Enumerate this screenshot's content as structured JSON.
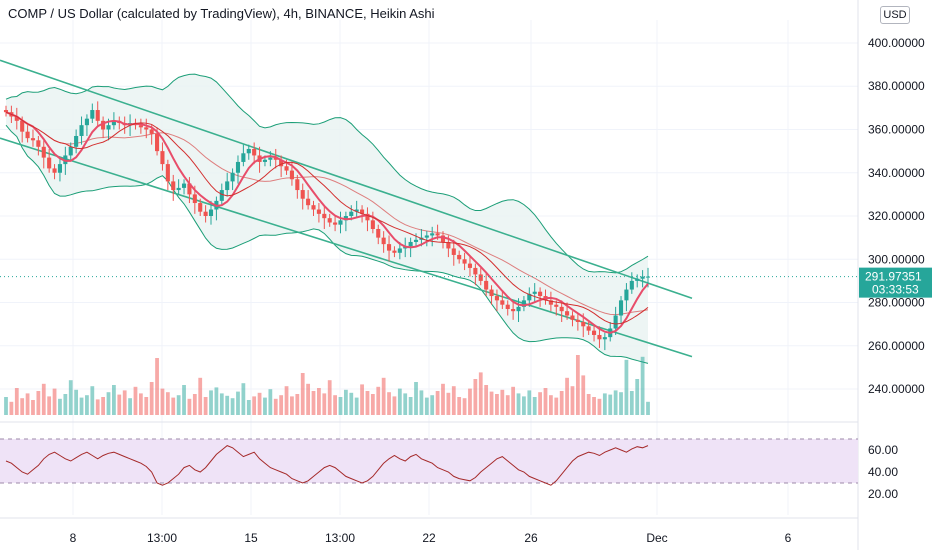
{
  "header": {
    "title": "COMP / US Dollar (calculated by TradingView), 4h, BINANCE, Heikin Ashi",
    "currency_button": "USD"
  },
  "price_axis": {
    "ticks": [
      "400.00000",
      "380.00000",
      "360.00000",
      "340.00000",
      "320.00000",
      "300.00000",
      "280.00000",
      "260.00000",
      "240.00000"
    ],
    "last_price": "291.97351",
    "countdown": "03:33:53"
  },
  "rsi_axis": {
    "ticks": [
      "60.00",
      "40.00",
      "20.00"
    ]
  },
  "time_axis": {
    "labels": [
      "8",
      "13:00",
      "15",
      "13:00",
      "22",
      "26",
      "Dec",
      "6"
    ]
  },
  "colors": {
    "up": "#26a69a",
    "down": "#ef5350",
    "ma": "#e84d6a",
    "ma_slow": "#d32f2f",
    "bb": "#1b9e77",
    "bb_fill": "#e9f3f1",
    "channel": "#3bb08f",
    "rsi_line": "#a52a2a",
    "rsi_band": "#efe3f7",
    "price_line": "#26a69a"
  },
  "chart_data": {
    "type": "candlestick",
    "symbol": "COMP / US Dollar",
    "interval": "4h",
    "exchange": "BINANCE",
    "style": "Heikin Ashi",
    "ylim": [
      228,
      406
    ],
    "last_price": 291.97351,
    "closes": [
      368,
      366,
      364,
      359,
      356,
      355,
      352,
      347,
      342,
      340,
      344,
      348,
      352,
      357,
      362,
      365,
      369,
      364,
      360,
      362,
      364,
      363,
      362,
      363,
      362,
      361,
      360,
      358,
      350,
      344,
      336,
      332,
      333,
      335,
      330,
      326,
      322,
      320,
      323,
      327,
      332,
      336,
      340,
      345,
      349,
      351,
      348,
      345,
      346,
      347,
      346,
      343,
      341,
      337,
      332,
      328,
      325,
      323,
      321,
      319,
      317,
      316,
      318,
      320,
      322,
      323,
      321,
      318,
      314,
      310,
      307,
      304,
      303,
      305,
      306,
      308,
      309,
      310,
      311,
      312,
      311,
      308,
      305,
      302,
      300,
      298,
      296,
      293,
      290,
      286,
      283,
      281,
      279,
      277,
      276,
      278,
      281,
      284,
      285,
      283,
      281,
      279,
      278,
      276,
      274,
      272,
      271,
      269,
      267,
      265,
      263,
      264,
      268,
      274,
      281,
      286,
      290,
      291,
      292,
      292
    ],
    "volume": [
      0.3,
      0.22,
      0.45,
      0.28,
      0.36,
      0.25,
      0.4,
      0.52,
      0.31,
      0.44,
      0.27,
      0.35,
      0.58,
      0.42,
      0.29,
      0.33,
      0.48,
      0.26,
      0.3,
      0.38,
      0.5,
      0.34,
      0.41,
      0.28,
      0.47,
      0.36,
      0.3,
      0.55,
      0.95,
      0.44,
      0.38,
      0.29,
      0.33,
      0.5,
      0.27,
      0.35,
      0.62,
      0.3,
      0.41,
      0.46,
      0.36,
      0.32,
      0.28,
      0.39,
      0.53,
      0.25,
      0.31,
      0.37,
      0.29,
      0.43,
      0.27,
      0.33,
      0.48,
      0.31,
      0.35,
      0.7,
      0.52,
      0.4,
      0.45,
      0.36,
      0.58,
      0.33,
      0.3,
      0.42,
      0.37,
      0.29,
      0.51,
      0.4,
      0.35,
      0.47,
      0.62,
      0.38,
      0.31,
      0.44,
      0.36,
      0.3,
      0.55,
      0.41,
      0.29,
      0.33,
      0.4,
      0.52,
      0.37,
      0.48,
      0.3,
      0.28,
      0.44,
      0.6,
      0.71,
      0.5,
      0.39,
      0.35,
      0.42,
      0.33,
      0.47,
      0.36,
      0.31,
      0.41,
      0.3,
      0.38,
      0.45,
      0.33,
      0.29,
      0.4,
      0.62,
      0.48,
      1.0,
      0.66,
      0.35,
      0.3,
      0.27,
      0.36,
      0.34,
      0.41,
      0.38,
      0.92,
      0.4,
      0.6,
      0.97,
      0.22
    ],
    "rsi": [
      50,
      48,
      44,
      40,
      38,
      42,
      46,
      52,
      56,
      58,
      55,
      52,
      50,
      53,
      56,
      58,
      55,
      52,
      55,
      57,
      58,
      56,
      54,
      52,
      50,
      48,
      45,
      40,
      30,
      28,
      30,
      34,
      38,
      44,
      46,
      42,
      40,
      44,
      50,
      56,
      60,
      64,
      62,
      58,
      54,
      56,
      58,
      52,
      48,
      44,
      42,
      40,
      38,
      34,
      32,
      30,
      32,
      36,
      40,
      44,
      46,
      44,
      40,
      36,
      34,
      32,
      30,
      32,
      36,
      42,
      48,
      52,
      55,
      52,
      50,
      54,
      56,
      52,
      50,
      48,
      44,
      42,
      40,
      36,
      34,
      33,
      32,
      35,
      40,
      44,
      48,
      52,
      54,
      50,
      46,
      42,
      40,
      36,
      34,
      32,
      30,
      28,
      32,
      38,
      44,
      50,
      54,
      56,
      58,
      57,
      55,
      58,
      60,
      62,
      60,
      58,
      61,
      63,
      62,
      64
    ],
    "rsi_band": [
      30,
      70
    ],
    "channel": {
      "upper": [
        [
          0,
          392
        ],
        [
          1,
          282
        ]
      ],
      "lower": [
        [
          0,
          356
        ],
        [
          1,
          255
        ]
      ]
    },
    "x_labels": [
      "8",
      "13:00",
      "15",
      "13:00",
      "22",
      "26",
      "Dec",
      "6"
    ]
  }
}
